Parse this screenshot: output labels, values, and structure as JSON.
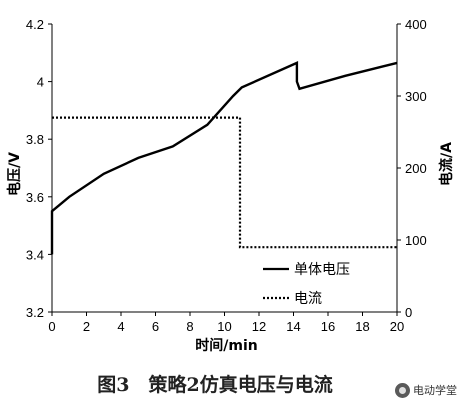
{
  "chart_data": {
    "type": "line",
    "xlabel": "时间/min",
    "ylabel_left": "电压/V",
    "ylabel_right": "电流/A",
    "xlim": [
      0,
      20
    ],
    "ylim_left": [
      3.2,
      4.2
    ],
    "ylim_right": [
      0,
      400
    ],
    "x_ticks": [
      "0",
      "2",
      "4",
      "6",
      "8",
      "10",
      "12",
      "14",
      "16",
      "18",
      "20"
    ],
    "y_left_ticks": [
      "3.2",
      "3.4",
      "3.6",
      "3.8",
      "4",
      "4.2"
    ],
    "y_right_ticks": [
      "0",
      "100",
      "200",
      "300",
      "400"
    ],
    "grid": false,
    "legend_position": "lower-right",
    "series": [
      {
        "name": "单体电压",
        "axis": "left",
        "style": "solid",
        "color": "#000000",
        "x": [
          0,
          0,
          1,
          3,
          5,
          7,
          9,
          10.5,
          11,
          14.2,
          14.2,
          14.35,
          17,
          19,
          20
        ],
        "y": [
          3.4,
          3.55,
          3.6,
          3.68,
          3.735,
          3.775,
          3.85,
          3.95,
          3.98,
          4.065,
          4.0,
          3.975,
          4.02,
          4.05,
          4.065
        ]
      },
      {
        "name": "电流",
        "axis": "right",
        "style": "dotted",
        "color": "#000000",
        "x": [
          0,
          10.9,
          10.9,
          20
        ],
        "y": [
          270,
          270,
          90,
          90
        ]
      }
    ]
  },
  "caption": "图3　策略2仿真电压与电流",
  "watermark": {
    "text": "电动学堂",
    "icon": "wechat-logo-icon"
  }
}
